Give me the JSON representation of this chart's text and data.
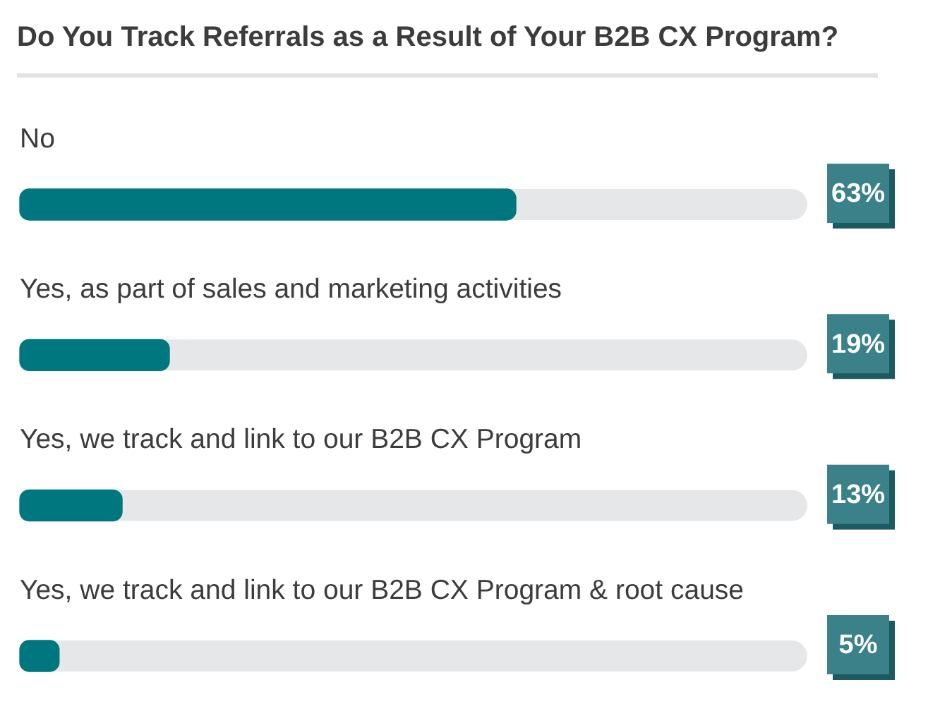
{
  "chart_data": {
    "type": "bar",
    "orientation": "horizontal",
    "title": "Do You Track Referrals as a Result of Your B2B CX Program?",
    "categories": [
      "No",
      "Yes, as part of sales and marketing activities",
      "Yes, we track and link to our B2B CX Program",
      "Yes, we track and link to our B2B CX Program & root cause"
    ],
    "values": [
      63,
      19,
      13,
      5
    ],
    "value_labels": [
      "63%",
      "19%",
      "13%",
      "5%"
    ],
    "color": "#00767f",
    "tick_labels": "y"
  }
}
